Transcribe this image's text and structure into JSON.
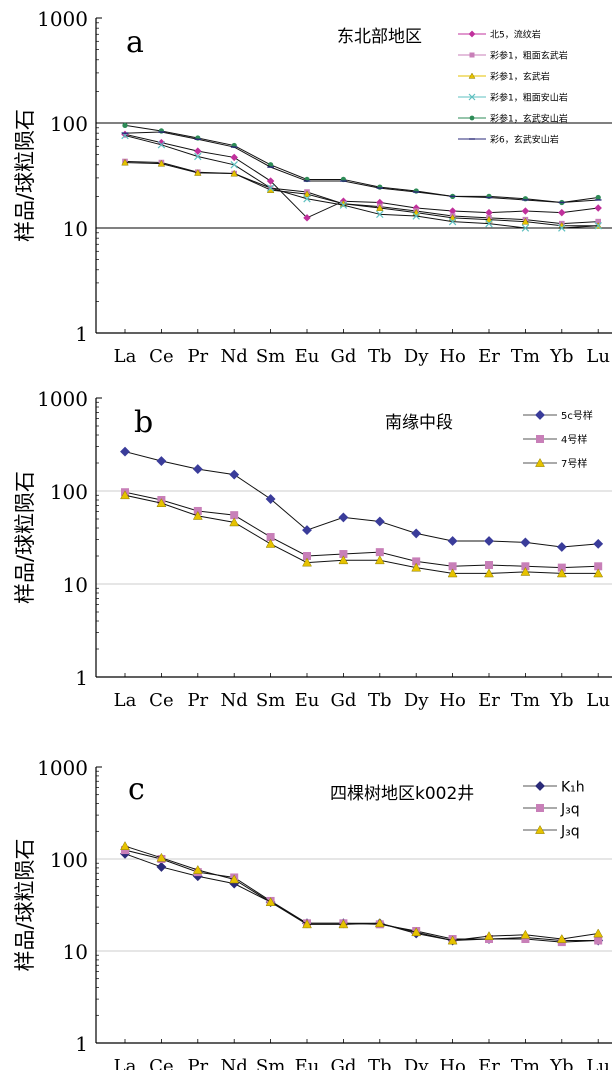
{
  "chart_data": [
    {
      "type": "line",
      "panel_label": "a",
      "region_text": "东北部地区",
      "scale": "log",
      "ylim": [
        1,
        1000
      ],
      "ytick_labels": [
        "1",
        "10",
        "100",
        "1000"
      ],
      "ylabel": "样品/球粒陨石",
      "categories": [
        "La",
        "Ce",
        "Pr",
        "Nd",
        "Sm",
        "Eu",
        "Gd",
        "Tb",
        "Dy",
        "Ho",
        "Er",
        "Tm",
        "Yb",
        "Lu"
      ],
      "legend_position": "top-right",
      "series": [
        {
          "name": "北5，流纹岩",
          "color": "#c0309c",
          "marker": "diamond",
          "values": [
            78,
            65,
            54,
            47,
            28,
            12.5,
            18,
            17.5,
            15.5,
            14.5,
            14,
            14.5,
            14,
            15.5
          ]
        },
        {
          "name": "彩参1，粗面玄武岩",
          "color": "#c87fb8",
          "marker": "square",
          "values": [
            43,
            42,
            34,
            33,
            24,
            22,
            17,
            16,
            14.5,
            13,
            12.5,
            12,
            11,
            11.5
          ]
        },
        {
          "name": "彩参1，玄武岩",
          "color": "#e6c200",
          "marker": "triangle",
          "values": [
            42,
            41,
            33.5,
            33,
            23,
            21,
            17,
            15.5,
            14,
            12.5,
            12,
            11.5,
            10.5,
            10.5
          ]
        },
        {
          "name": "彩参1，粗面安山岩",
          "color": "#5fc0c0",
          "marker": "x",
          "values": [
            76,
            62,
            48,
            40,
            24,
            19,
            16.5,
            13.5,
            13,
            11.5,
            11,
            10,
            10,
            10.5
          ]
        },
        {
          "name": "彩参1，玄武安山岩",
          "color": "#2e8b57",
          "marker": "circle",
          "values": [
            95,
            84,
            72,
            61,
            40,
            29,
            29,
            24.5,
            22.5,
            20,
            20,
            19,
            17.5,
            19.5
          ]
        },
        {
          "name": "彩6，玄武安山岩",
          "color": "#2a2a78",
          "marker": "dash",
          "values": [
            80,
            82,
            70,
            59,
            38,
            28,
            28,
            24,
            22,
            20,
            19.5,
            18.5,
            17.5,
            18.5
          ]
        }
      ]
    },
    {
      "type": "line",
      "panel_label": "b",
      "region_text": "南缘中段",
      "scale": "log",
      "ylim": [
        1,
        1000
      ],
      "ytick_labels": [
        "1",
        "10",
        "100",
        "1000"
      ],
      "ylabel": "样品/球粒陨石",
      "categories": [
        "La",
        "Ce",
        "Pr",
        "Nd",
        "Sm",
        "Eu",
        "Gd",
        "Tb",
        "Dy",
        "Ho",
        "Er",
        "Tm",
        "Yb",
        "Lu"
      ],
      "legend_position": "top-right",
      "series": [
        {
          "name": "5c号样",
          "color": "#3a3c9a",
          "marker": "diamond",
          "values": [
            265,
            210,
            172,
            150,
            82,
            38,
            52,
            47,
            35,
            29,
            29,
            28,
            25,
            27
          ]
        },
        {
          "name": "4号样",
          "color": "#c87fb8",
          "marker": "square",
          "values": [
            97,
            80,
            61,
            55,
            32,
            20,
            21,
            22,
            17.5,
            15.5,
            16,
            15.5,
            15,
            15.5
          ]
        },
        {
          "name": "7号样",
          "color": "#e6c200",
          "marker": "triangle",
          "values": [
            90,
            74,
            54,
            46,
            27,
            17,
            18,
            18,
            15,
            13,
            13,
            13.5,
            13,
            13
          ]
        }
      ]
    },
    {
      "type": "line",
      "panel_label": "c",
      "region_text": "四棵树地区k002井",
      "scale": "log",
      "ylim": [
        1,
        1000
      ],
      "ytick_labels": [
        "1",
        "10",
        "100",
        "1000"
      ],
      "ylabel": "样品/球粒陨石",
      "categories": [
        "La",
        "Ce",
        "Pr",
        "Nd",
        "Sm",
        "Eu",
        "Gd",
        "Tb",
        "Dy",
        "Ho",
        "Er",
        "Tm",
        "Yb",
        "Lu"
      ],
      "legend_position": "top-right",
      "series": [
        {
          "name": "K₁h",
          "color": "#2a2a78",
          "marker": "diamond",
          "values": [
            114,
            82,
            65,
            54,
            34,
            20,
            20,
            20,
            15.5,
            13,
            13.5,
            14,
            13,
            13
          ]
        },
        {
          "name": "J₃q",
          "color": "#c87fb8",
          "marker": "square",
          "values": [
            125,
            100,
            72,
            63,
            35,
            20,
            20,
            19.5,
            16.5,
            13.5,
            13.5,
            13.5,
            12.5,
            13
          ]
        },
        {
          "name": "J₃q",
          "color": "#e6c200",
          "marker": "triangle",
          "values": [
            138,
            103,
            76,
            60,
            34,
            19.5,
            19.5,
            20,
            16,
            13,
            14.5,
            15,
            13.5,
            15.5
          ]
        }
      ]
    }
  ]
}
